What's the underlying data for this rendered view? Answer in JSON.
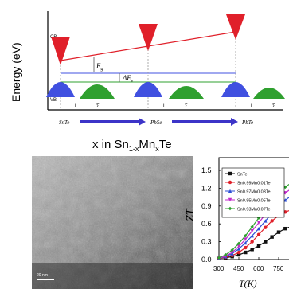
{
  "band_diagram": {
    "y_axis_label": "Energy (eV)",
    "cb_label": "CB",
    "vb_label": "VB",
    "eg_label": "E",
    "eg_sub": "g",
    "delta_e_label": "ΔE",
    "delta_e_sub": "v",
    "k_point_labels": [
      "L",
      "Σ",
      "L",
      "Σ",
      "L",
      "Σ"
    ],
    "series_labels": [
      "SnTe",
      "PbSe",
      "PbTe"
    ],
    "colors": {
      "cb": "#e0202a",
      "vb_l": "#4050e0",
      "vb_sigma": "#2fa02f",
      "arrow": "#3c34c8",
      "axis": "#000000"
    }
  },
  "composition_label": {
    "prefix": "x in Sn",
    "sub1": "1-x",
    "mid": "Mn",
    "sub2": "x",
    "suffix": "Te"
  },
  "tem_image": {
    "scale_label": "20 nm"
  },
  "chart_data": {
    "type": "line",
    "ylabel": "ZT",
    "xlabel": "T(K)",
    "yticks": [
      "1.5",
      "1.2",
      "0.9",
      "0.6",
      "0.3",
      "0.0"
    ],
    "xticks": [
      "300",
      "450",
      "600",
      "750",
      "9C"
    ],
    "ylim": [
      0,
      1.5
    ],
    "xlim": [
      300,
      900
    ],
    "legend": [
      "SnTe",
      "Sn_0.99Mn_0.01Te",
      "Sn_0.97Mn_0.03Te",
      "Sn_0.95Mn_0.05Te",
      "Sn_0.93Mn_0.07Te"
    ],
    "legend_display": [
      "SnTe",
      "Sn0.99Mn0.01Te",
      "Sn0.97Mn0.03Te",
      "Sn0.95Mn0.05Te",
      "Sn0.93Mn0.07Te"
    ],
    "series": [
      {
        "color": "#111111",
        "marker": "square",
        "x": [
          300,
          350,
          400,
          450,
          500,
          550,
          600,
          650,
          700,
          750,
          800,
          850,
          900
        ],
        "y": [
          0.02,
          0.03,
          0.05,
          0.08,
          0.12,
          0.17,
          0.23,
          0.3,
          0.38,
          0.46,
          0.52,
          0.56,
          0.58
        ]
      },
      {
        "color": "#e0202a",
        "marker": "circle",
        "x": [
          300,
          350,
          400,
          450,
          500,
          550,
          600,
          650,
          700,
          750,
          800,
          850,
          900
        ],
        "y": [
          0.02,
          0.04,
          0.07,
          0.12,
          0.2,
          0.3,
          0.42,
          0.54,
          0.65,
          0.74,
          0.8,
          0.84,
          0.86
        ]
      },
      {
        "color": "#2d4fd6",
        "marker": "triangle",
        "x": [
          300,
          350,
          400,
          450,
          500,
          550,
          600,
          650,
          700,
          750,
          800,
          850,
          900
        ],
        "y": [
          0.02,
          0.05,
          0.1,
          0.18,
          0.28,
          0.4,
          0.52,
          0.65,
          0.78,
          0.9,
          1.0,
          1.08,
          1.12
        ]
      },
      {
        "color": "#c02acb",
        "marker": "triangle-down",
        "x": [
          300,
          350,
          400,
          450,
          500,
          550,
          600,
          650,
          700,
          750,
          800,
          850,
          900
        ],
        "y": [
          0.02,
          0.06,
          0.12,
          0.22,
          0.34,
          0.48,
          0.62,
          0.76,
          0.9,
          1.02,
          1.12,
          1.2,
          1.24
        ]
      },
      {
        "color": "#2fa02f",
        "marker": "diamond",
        "x": [
          300,
          350,
          400,
          450,
          500,
          550,
          600,
          650,
          700,
          750,
          800,
          850,
          900
        ],
        "y": [
          0.03,
          0.08,
          0.16,
          0.27,
          0.4,
          0.55,
          0.7,
          0.85,
          1.0,
          1.12,
          1.22,
          1.3,
          1.35
        ]
      }
    ]
  }
}
